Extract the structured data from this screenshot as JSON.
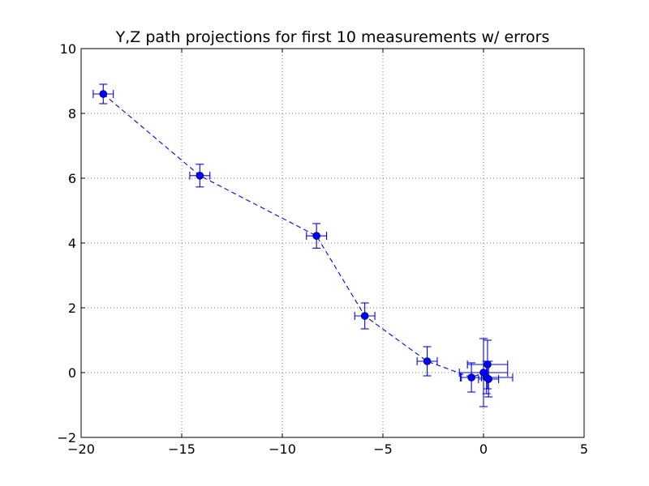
{
  "chart_data": {
    "type": "scatter",
    "title": "Y,Z path projections for first 10 measurements w/ errors",
    "xlabel": "",
    "ylabel": "",
    "xlim": [
      -20,
      5
    ],
    "ylim": [
      -2,
      10
    ],
    "xticks": [
      -20,
      -15,
      -10,
      -5,
      0,
      5
    ],
    "yticks": [
      -2,
      0,
      2,
      4,
      6,
      8,
      10
    ],
    "xtick_labels": [
      "−20",
      "−15",
      "−10",
      "−5",
      "0",
      "5"
    ],
    "ytick_labels": [
      "−2",
      "0",
      "2",
      "4",
      "6",
      "8",
      "10"
    ],
    "grid": true,
    "line_style": "dashed",
    "marker": "circle",
    "color": "#0000ff",
    "series": [
      {
        "x": [
          -18.9,
          -14.1,
          -8.3,
          -5.9,
          -2.8,
          -0.6,
          0.0,
          0.2,
          0.15,
          0.25
        ],
        "y": [
          8.6,
          6.08,
          4.22,
          1.75,
          0.35,
          -0.15,
          0.0,
          0.25,
          -0.15,
          -0.2
        ],
        "xerr": [
          0.5,
          0.5,
          0.5,
          0.5,
          0.5,
          0.5,
          1.2,
          1.0,
          1.3,
          0.5
        ],
        "yerr": [
          0.3,
          0.35,
          0.38,
          0.4,
          0.45,
          0.45,
          1.05,
          0.75,
          0.5,
          0.55
        ]
      }
    ]
  }
}
